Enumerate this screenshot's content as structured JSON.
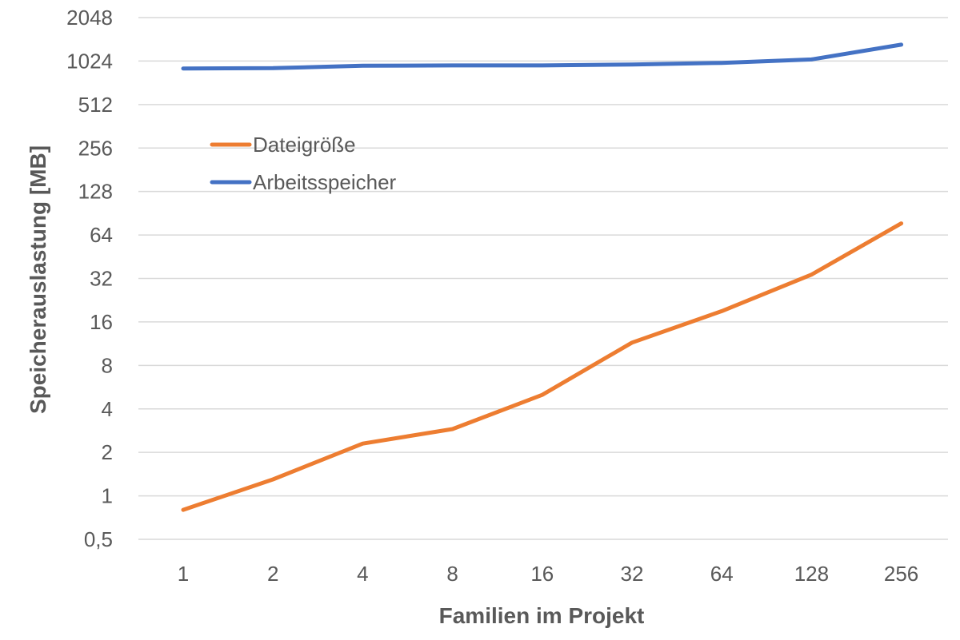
{
  "chart_data": {
    "type": "line",
    "x": [
      "1",
      "2",
      "4",
      "8",
      "16",
      "32",
      "64",
      "128",
      "256"
    ],
    "series": [
      {
        "name": "Dateigröße",
        "color": "#ED7D31",
        "values": [
          0.8,
          1.3,
          2.3,
          2.9,
          5.0,
          11.5,
          19.0,
          34.0,
          77.0
        ]
      },
      {
        "name": "Arbeitsspeicher",
        "color": "#4472C4",
        "values": [
          910,
          915,
          950,
          955,
          955,
          970,
          995,
          1050,
          1330
        ]
      }
    ],
    "xlabel": "Familien im Projekt",
    "ylabel": "Speicherauslastung [MB]",
    "y_scale": "log2",
    "ylim": [
      0.5,
      2048
    ],
    "yticks": [
      "0,5",
      "1",
      "2",
      "4",
      "8",
      "16",
      "32",
      "64",
      "128",
      "256",
      "512",
      "1024",
      "2048"
    ],
    "grid": true,
    "legend_position": "upper-left"
  }
}
